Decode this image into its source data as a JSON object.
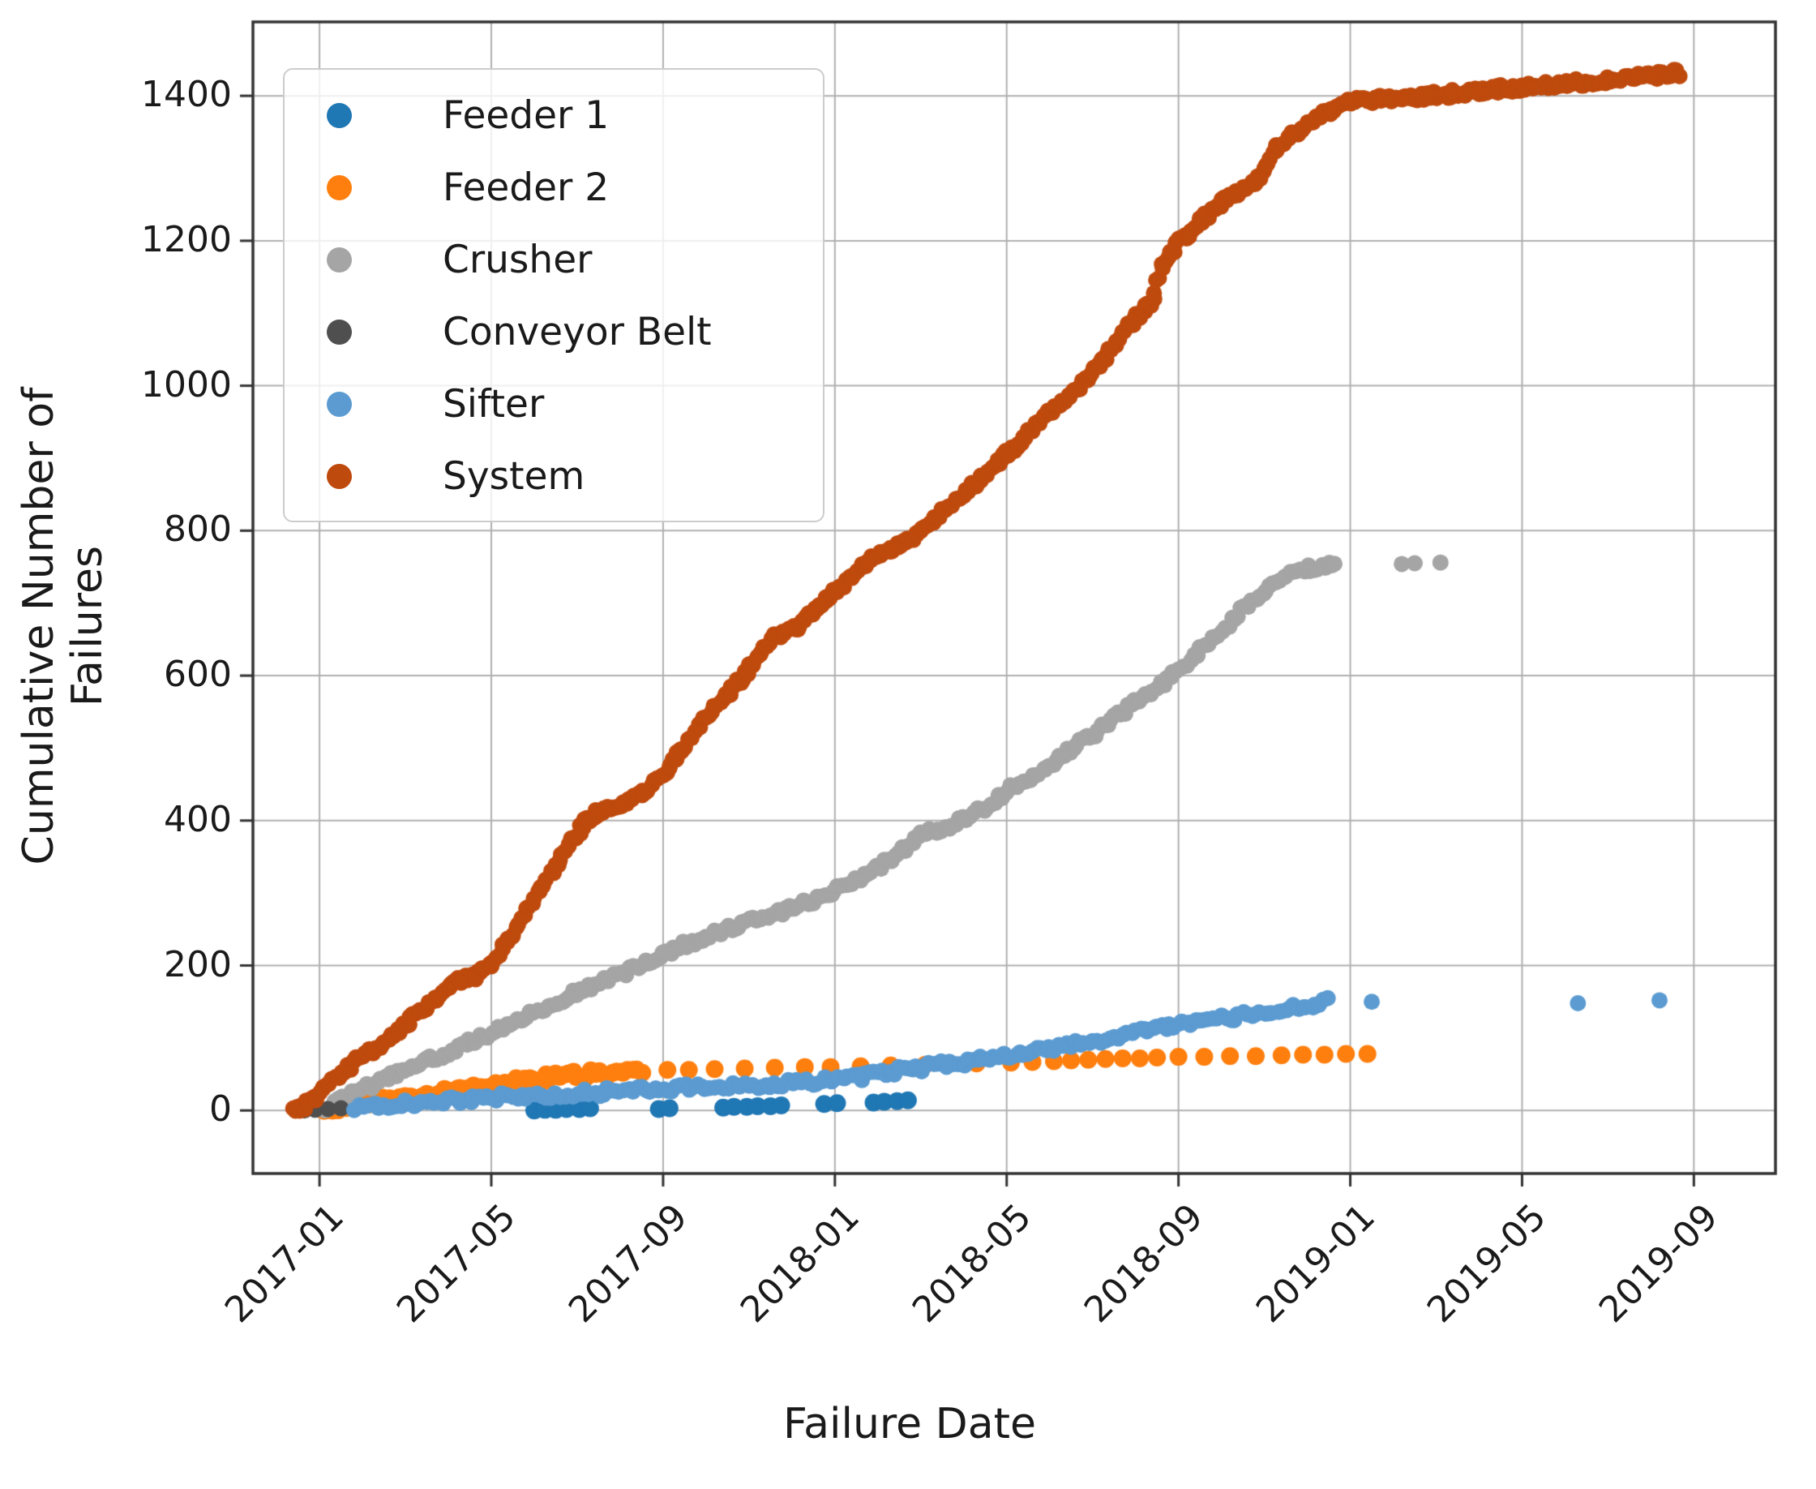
{
  "chart_data": {
    "type": "scatter",
    "title": "",
    "xlabel": "Failure Date",
    "ylabel": "Cumulative Number of Failures",
    "grid": true,
    "legend_position": "upper left",
    "axis_color": "#333333",
    "grid_color": "#b0b0b0",
    "text_color": "#1a1a1a",
    "x_axis": {
      "unit": "months since 2017-01",
      "lim": [
        -1.55,
        33.9
      ],
      "tick_positions": [
        0,
        4,
        8,
        12,
        16,
        20,
        24,
        28,
        32
      ],
      "tick_labels": [
        "2017-01",
        "2017-05",
        "2017-09",
        "2018-01",
        "2018-05",
        "2018-09",
        "2019-01",
        "2019-05",
        "2019-09"
      ]
    },
    "y_axis": {
      "lim": [
        -87,
        1502
      ],
      "ticks": [
        0,
        200,
        400,
        600,
        800,
        1000,
        1200,
        1400
      ]
    },
    "series": [
      {
        "name": "Feeder 1",
        "color": "#1f77b4",
        "step": 4,
        "radius": 11,
        "band": [],
        "dots": [
          [
            5.0,
            0
          ],
          [
            5.25,
            1
          ],
          [
            5.5,
            1
          ],
          [
            5.75,
            2
          ],
          [
            6.05,
            2
          ],
          [
            6.3,
            3
          ],
          [
            7.9,
            2
          ],
          [
            8.15,
            3
          ],
          [
            9.4,
            4
          ],
          [
            9.65,
            5
          ],
          [
            9.95,
            5
          ],
          [
            10.2,
            6
          ],
          [
            10.5,
            6
          ],
          [
            10.75,
            7
          ],
          [
            11.75,
            9
          ],
          [
            12.05,
            10
          ],
          [
            12.9,
            11
          ],
          [
            13.15,
            12
          ],
          [
            13.45,
            13
          ],
          [
            13.7,
            14
          ]
        ]
      },
      {
        "name": "Feeder 2",
        "color": "#ff7f0e",
        "step": 6,
        "radius": 11,
        "band": [
          [
            0,
            0
          ],
          [
            0.4,
            3
          ],
          [
            0.8,
            6
          ],
          [
            1.2,
            10
          ],
          [
            1.6,
            14
          ],
          [
            2,
            17
          ],
          [
            2.4,
            20
          ],
          [
            2.8,
            24
          ],
          [
            3.2,
            28
          ],
          [
            3.6,
            31
          ],
          [
            4,
            34
          ],
          [
            4.4,
            38
          ],
          [
            4.8,
            41
          ],
          [
            5.2,
            44
          ],
          [
            5.6,
            47
          ],
          [
            6,
            49
          ],
          [
            6.4,
            51
          ],
          [
            6.8,
            53
          ],
          [
            7.2,
            54
          ],
          [
            7.6,
            55
          ]
        ],
        "dots": [
          [
            8.1,
            56
          ],
          [
            8.6,
            56
          ],
          [
            9.2,
            57
          ],
          [
            9.9,
            58
          ],
          [
            10.6,
            59
          ],
          [
            11.3,
            60
          ],
          [
            11.9,
            60
          ],
          [
            12.6,
            61
          ],
          [
            13.3,
            62
          ],
          [
            14.1,
            63
          ],
          [
            14.6,
            64
          ],
          [
            15.3,
            65
          ],
          [
            16.1,
            66
          ],
          [
            16.6,
            67
          ],
          [
            17.1,
            68
          ],
          [
            17.5,
            69
          ],
          [
            17.9,
            70
          ],
          [
            18.3,
            71
          ],
          [
            18.7,
            72
          ],
          [
            19.1,
            72
          ],
          [
            19.5,
            73
          ],
          [
            20.0,
            74
          ],
          [
            20.6,
            74
          ],
          [
            21.2,
            75
          ],
          [
            21.8,
            75
          ],
          [
            22.4,
            76
          ],
          [
            22.9,
            77
          ],
          [
            23.4,
            77
          ],
          [
            23.9,
            78
          ],
          [
            24.4,
            78
          ]
        ]
      },
      {
        "name": "Crusher",
        "color": "#a5a5a5",
        "step": 4.5,
        "radius": 10,
        "band": [
          [
            0,
            0
          ],
          [
            0.4,
            12
          ],
          [
            0.8,
            24
          ],
          [
            1.2,
            35
          ],
          [
            1.6,
            46
          ],
          [
            2,
            55
          ],
          [
            2.5,
            68
          ],
          [
            3,
            80
          ],
          [
            3.5,
            93
          ],
          [
            4,
            107
          ],
          [
            4.5,
            122
          ],
          [
            5,
            136
          ],
          [
            5.5,
            150
          ],
          [
            6,
            163
          ],
          [
            6.5,
            175
          ],
          [
            7,
            187
          ],
          [
            7.5,
            200
          ],
          [
            8,
            214
          ],
          [
            8.5,
            228
          ],
          [
            9,
            240
          ],
          [
            9.5,
            250
          ],
          [
            10,
            260
          ],
          [
            10.5,
            270
          ],
          [
            11,
            280
          ],
          [
            11.5,
            290
          ],
          [
            12,
            302
          ],
          [
            12.5,
            316
          ],
          [
            13,
            334
          ],
          [
            13.4,
            352
          ],
          [
            13.8,
            370
          ],
          [
            14.1,
            382
          ],
          [
            14.5,
            390
          ],
          [
            15,
            400
          ],
          [
            15.4,
            415
          ],
          [
            15.8,
            432
          ],
          [
            16.2,
            448
          ],
          [
            16.6,
            462
          ],
          [
            17,
            478
          ],
          [
            17.4,
            495
          ],
          [
            17.8,
            510
          ],
          [
            18.2,
            528
          ],
          [
            18.6,
            545
          ],
          [
            19,
            562
          ],
          [
            19.4,
            580
          ],
          [
            19.8,
            598
          ],
          [
            20.2,
            618
          ],
          [
            20.6,
            640
          ],
          [
            21,
            662
          ],
          [
            21.4,
            686
          ],
          [
            21.8,
            708
          ],
          [
            22.2,
            726
          ],
          [
            22.6,
            740
          ],
          [
            23,
            748
          ],
          [
            23.4,
            751
          ],
          [
            23.7,
            753
          ]
        ],
        "dots": [
          [
            25.2,
            754
          ],
          [
            25.5,
            755
          ],
          [
            26.1,
            756
          ]
        ]
      },
      {
        "name": "Conveyor Belt",
        "color": "#4f4f4f",
        "step": 5,
        "radius": 10,
        "band": [],
        "dots": [
          [
            -0.35,
            0
          ],
          [
            -0.1,
            1
          ],
          [
            0.2,
            2
          ],
          [
            0.5,
            3
          ]
        ]
      },
      {
        "name": "Sifter",
        "color": "#5b9bd1",
        "step": 5.5,
        "radius": 10,
        "band": [
          [
            0.8,
            2
          ],
          [
            1.2,
            5
          ],
          [
            1.6,
            7
          ],
          [
            2,
            9
          ],
          [
            2.5,
            12
          ],
          [
            3,
            14
          ],
          [
            3.5,
            16
          ],
          [
            4,
            18
          ],
          [
            4.5,
            20
          ],
          [
            5,
            21
          ],
          [
            5.5,
            22
          ],
          [
            6,
            24
          ],
          [
            6.5,
            25
          ],
          [
            7,
            27
          ],
          [
            7.5,
            28
          ],
          [
            8,
            29
          ],
          [
            8.5,
            31
          ],
          [
            9,
            32
          ],
          [
            9.5,
            34
          ],
          [
            10,
            35
          ],
          [
            10.5,
            37
          ],
          [
            11,
            38
          ],
          [
            11.5,
            40
          ],
          [
            12,
            42
          ],
          [
            12.5,
            46
          ],
          [
            13,
            50
          ],
          [
            13.5,
            55
          ],
          [
            14,
            59
          ],
          [
            14.5,
            63
          ],
          [
            15,
            67
          ],
          [
            15.5,
            71
          ],
          [
            16,
            75
          ],
          [
            16.5,
            80
          ],
          [
            17,
            85
          ],
          [
            17.5,
            90
          ],
          [
            18,
            96
          ],
          [
            18.5,
            102
          ],
          [
            19,
            108
          ],
          [
            19.5,
            113
          ],
          [
            20,
            118
          ],
          [
            20.5,
            123
          ],
          [
            21,
            127
          ],
          [
            21.5,
            131
          ],
          [
            22,
            136
          ],
          [
            22.3,
            139
          ],
          [
            22.6,
            142
          ],
          [
            23,
            146
          ],
          [
            23.3,
            149
          ],
          [
            23.6,
            151
          ]
        ],
        "dots": [
          [
            24.5,
            150
          ],
          [
            29.3,
            148
          ],
          [
            31.2,
            152
          ]
        ]
      },
      {
        "name": "System",
        "color": "#bf4a0d",
        "step": 3.5,
        "radius": 10,
        "band": [
          [
            -0.6,
            0
          ],
          [
            -0.4,
            5
          ],
          [
            -0.2,
            12
          ],
          [
            0,
            25
          ],
          [
            0.3,
            40
          ],
          [
            0.6,
            55
          ],
          [
            1,
            75
          ],
          [
            1.4,
            90
          ],
          [
            1.7,
            100
          ],
          [
            2,
            120
          ],
          [
            2.4,
            140
          ],
          [
            2.7,
            152
          ],
          [
            3,
            168
          ],
          [
            3.2,
            178
          ],
          [
            3.6,
            185
          ],
          [
            4,
            200
          ],
          [
            4.3,
            225
          ],
          [
            4.7,
            262
          ],
          [
            5,
            292
          ],
          [
            5.3,
            320
          ],
          [
            5.6,
            348
          ],
          [
            6,
            382
          ],
          [
            6.2,
            398
          ],
          [
            6.4,
            408
          ],
          [
            6.8,
            418
          ],
          [
            7.2,
            428
          ],
          [
            7.6,
            442
          ],
          [
            8,
            465
          ],
          [
            8.4,
            495
          ],
          [
            8.8,
            528
          ],
          [
            9.2,
            558
          ],
          [
            9.6,
            582
          ],
          [
            9.9,
            602
          ],
          [
            10.3,
            632
          ],
          [
            10.6,
            652
          ],
          [
            10.9,
            660
          ],
          [
            11.3,
            675
          ],
          [
            11.7,
            700
          ],
          [
            12,
            715
          ],
          [
            12.4,
            738
          ],
          [
            12.8,
            758
          ],
          [
            13.2,
            772
          ],
          [
            13.6,
            782
          ],
          [
            14,
            796
          ],
          [
            14.4,
            818
          ],
          [
            14.8,
            842
          ],
          [
            15.2,
            862
          ],
          [
            15.6,
            884
          ],
          [
            16,
            905
          ],
          [
            16.4,
            928
          ],
          [
            16.8,
            952
          ],
          [
            17.2,
            972
          ],
          [
            17.6,
            992
          ],
          [
            18,
            1018
          ],
          [
            18.4,
            1048
          ],
          [
            18.8,
            1082
          ],
          [
            19.2,
            1105
          ],
          [
            19.4,
            1118
          ],
          [
            19.55,
            1152
          ],
          [
            19.7,
            1172
          ],
          [
            20,
            1198
          ],
          [
            20.4,
            1220
          ],
          [
            20.8,
            1242
          ],
          [
            21.2,
            1262
          ],
          [
            21.6,
            1275
          ],
          [
            21.9,
            1288
          ],
          [
            22.1,
            1308
          ],
          [
            22.3,
            1328
          ],
          [
            22.6,
            1342
          ],
          [
            23,
            1362
          ],
          [
            23.4,
            1376
          ],
          [
            23.8,
            1388
          ],
          [
            24.2,
            1393
          ],
          [
            24.6,
            1395
          ],
          [
            25,
            1396
          ],
          [
            25.4,
            1398
          ],
          [
            25.8,
            1400
          ],
          [
            26.2,
            1402
          ],
          [
            26.6,
            1404
          ],
          [
            27,
            1406
          ],
          [
            27.4,
            1409
          ],
          [
            27.8,
            1411
          ],
          [
            28.2,
            1413
          ],
          [
            28.6,
            1415
          ],
          [
            29,
            1417
          ],
          [
            29.4,
            1419
          ],
          [
            29.8,
            1421
          ],
          [
            30.2,
            1423
          ],
          [
            30.6,
            1425
          ],
          [
            31,
            1427
          ],
          [
            31.4,
            1430
          ],
          [
            31.7,
            1432
          ]
        ],
        "dots": []
      }
    ]
  }
}
